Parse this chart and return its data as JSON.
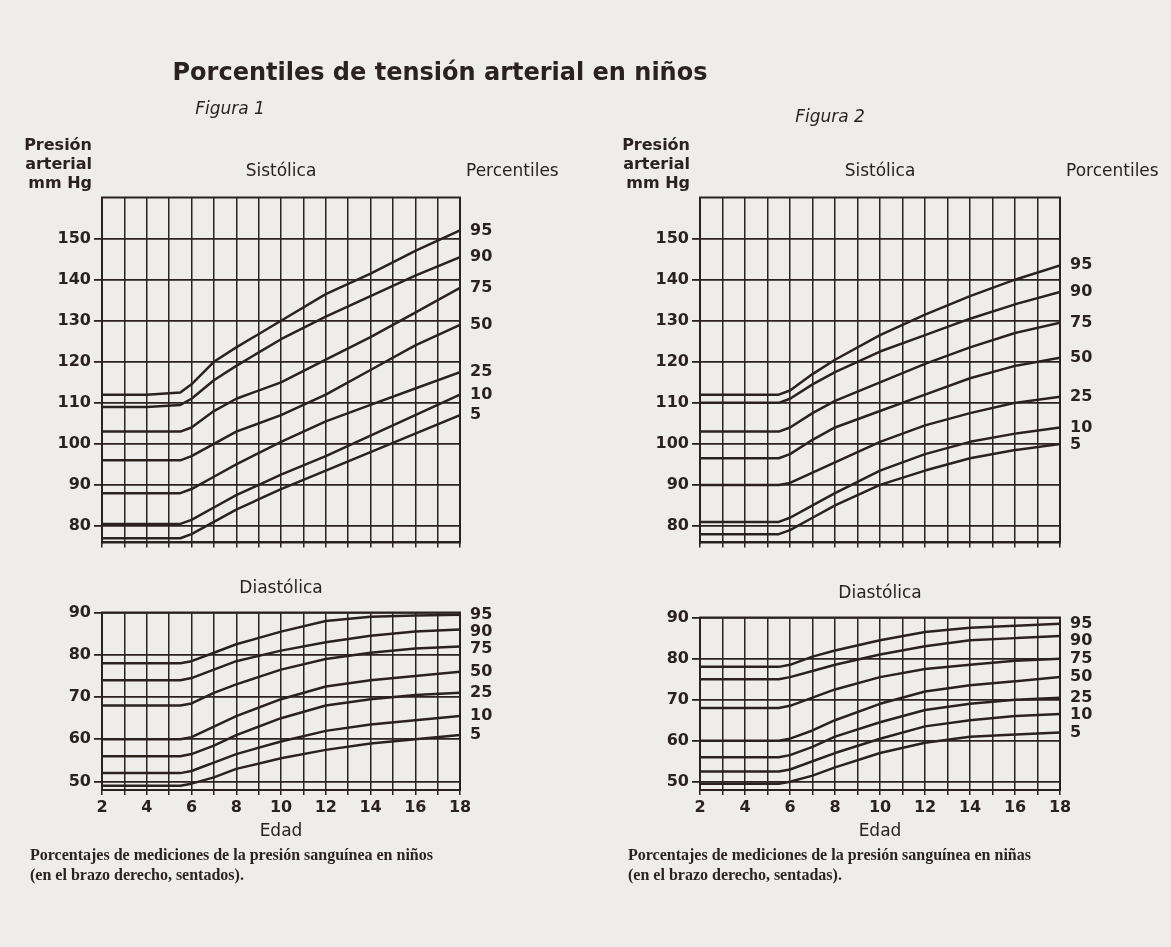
{
  "chart_data": [
    {
      "type": "line",
      "title": "Sistólica",
      "ylabel": "Presión arterial mm Hg",
      "legend_title": "Percentiles",
      "annotations": [
        "Porcentiles de tensión arterial en niños",
        "Figura 1"
      ],
      "x": [
        2,
        4,
        5.5,
        6,
        7,
        8,
        10,
        12,
        14,
        16,
        18
      ],
      "xlim": [
        2,
        18
      ],
      "xticks": [
        2,
        {
          "value": 3,
          "label": null
        },
        4,
        {
          "value": 5,
          "label": null
        },
        6,
        {
          "value": 7,
          "label": null
        },
        8,
        {
          "value": 9,
          "label": null
        },
        10,
        {
          "value": 11,
          "label": null
        },
        12,
        {
          "value": 13,
          "label": null
        },
        14,
        {
          "value": 15,
          "label": null
        },
        16,
        {
          "value": 17,
          "label": null
        },
        18
      ],
      "ylim": [
        76,
        160
      ],
      "yticks": [
        80,
        90,
        100,
        110,
        120,
        130,
        140,
        150
      ],
      "grid": true,
      "tick_labels": "y",
      "marker": "none",
      "line_style": "solid",
      "series": [
        {
          "name": "95",
          "color": "#2b2220",
          "values": [
            112,
            112,
            112.5,
            114.5,
            120,
            123.5,
            130,
            136.5,
            141.5,
            147,
            152
          ]
        },
        {
          "name": "90",
          "color": "#2b2220",
          "values": [
            109,
            109,
            109.5,
            111,
            115.5,
            119,
            125.5,
            131,
            136,
            141,
            145.5
          ]
        },
        {
          "name": "75",
          "color": "#2b2220",
          "values": [
            103,
            103,
            103,
            104,
            108,
            111,
            115,
            120.5,
            126,
            132,
            138
          ]
        },
        {
          "name": "50",
          "color": "#2b2220",
          "values": [
            96,
            96,
            96,
            97,
            100,
            103,
            107,
            112,
            118,
            124,
            129
          ]
        },
        {
          "name": "25",
          "color": "#2b2220",
          "values": [
            88,
            88,
            88,
            89,
            92,
            95,
            100.5,
            105.5,
            109.5,
            113.5,
            117.5
          ]
        },
        {
          "name": "10",
          "color": "#2b2220",
          "values": [
            80.5,
            80.5,
            80.5,
            81.5,
            84.5,
            87.5,
            92.5,
            97,
            102,
            107,
            112
          ]
        },
        {
          "name": "5",
          "color": "#2b2220",
          "values": [
            77,
            77,
            77,
            78,
            81,
            84,
            89,
            93.5,
            98,
            102.5,
            107
          ]
        }
      ]
    },
    {
      "type": "line",
      "title": "Diastólica",
      "xlabel": "Edad",
      "annotations": [
        "Porcentajes de mediciones de la presión sanguínea en niños (en el brazo derecho, sentados)."
      ],
      "x": [
        2,
        4,
        5.5,
        6,
        7,
        8,
        10,
        12,
        14,
        16,
        18
      ],
      "xlim": [
        2,
        18
      ],
      "xticks": [
        2,
        {
          "value": 3,
          "label": null
        },
        4,
        {
          "value": 5,
          "label": null
        },
        6,
        {
          "value": 7,
          "label": null
        },
        8,
        {
          "value": 9,
          "label": null
        },
        10,
        {
          "value": 11,
          "label": null
        },
        12,
        {
          "value": 13,
          "label": null
        },
        14,
        {
          "value": 15,
          "label": null
        },
        16,
        {
          "value": 17,
          "label": null
        },
        18
      ],
      "ylim": [
        48,
        90
      ],
      "yticks": [
        50,
        60,
        70,
        80,
        90
      ],
      "grid": true,
      "marker": "none",
      "line_style": "solid",
      "series": [
        {
          "name": "95",
          "color": "#2b2220",
          "values": [
            78,
            78,
            78,
            78.5,
            80.5,
            82.5,
            85.5,
            88,
            89,
            89.3,
            89.5
          ]
        },
        {
          "name": "90",
          "color": "#2b2220",
          "values": [
            74,
            74,
            74,
            74.5,
            76.5,
            78.5,
            81,
            83,
            84.5,
            85.5,
            86
          ]
        },
        {
          "name": "75",
          "color": "#2b2220",
          "values": [
            68,
            68,
            68,
            68.5,
            71,
            73,
            76.5,
            79,
            80.5,
            81.5,
            82
          ]
        },
        {
          "name": "50",
          "color": "#2b2220",
          "values": [
            60,
            60,
            60,
            60.5,
            63,
            65.5,
            69.5,
            72.5,
            74,
            75,
            76
          ]
        },
        {
          "name": "25",
          "color": "#2b2220",
          "values": [
            56,
            56,
            56,
            56.5,
            58.5,
            61,
            65,
            68,
            69.5,
            70.5,
            71
          ]
        },
        {
          "name": "10",
          "color": "#2b2220",
          "values": [
            52,
            52,
            52,
            52.5,
            54.5,
            56.5,
            59.5,
            62,
            63.5,
            64.5,
            65.5
          ]
        },
        {
          "name": "5",
          "color": "#2b2220",
          "values": [
            49,
            49,
            49,
            49.5,
            51,
            53,
            55.5,
            57.5,
            59,
            60,
            61
          ]
        }
      ]
    },
    {
      "type": "line",
      "title": "Sistólica",
      "ylabel": "Presión arterial mm Hg",
      "legend_title": "Porcentiles",
      "annotations": [
        "Figura 2"
      ],
      "x": [
        2,
        4,
        5.5,
        6,
        7,
        8,
        10,
        12,
        14,
        16,
        18
      ],
      "xlim": [
        2,
        18
      ],
      "xticks": [
        2,
        {
          "value": 3,
          "label": null
        },
        4,
        {
          "value": 5,
          "label": null
        },
        6,
        {
          "value": 7,
          "label": null
        },
        8,
        {
          "value": 9,
          "label": null
        },
        10,
        {
          "value": 11,
          "label": null
        },
        12,
        {
          "value": 13,
          "label": null
        },
        14,
        {
          "value": 15,
          "label": null
        },
        16,
        {
          "value": 17,
          "label": null
        },
        18
      ],
      "ylim": [
        76,
        160
      ],
      "yticks": [
        80,
        90,
        100,
        110,
        120,
        130,
        140,
        150
      ],
      "grid": true,
      "tick_labels": "y",
      "marker": "none",
      "line_style": "solid",
      "series": [
        {
          "name": "95",
          "color": "#2b2220",
          "values": [
            112,
            112,
            112,
            113,
            117,
            120.5,
            126.5,
            131.5,
            136,
            140,
            143.5
          ]
        },
        {
          "name": "90",
          "color": "#2b2220",
          "values": [
            110,
            110,
            110,
            111,
            114.5,
            117.5,
            122.5,
            126.5,
            130.5,
            134,
            137
          ]
        },
        {
          "name": "75",
          "color": "#2b2220",
          "values": [
            103,
            103,
            103,
            104,
            107.5,
            110.5,
            115,
            119.5,
            123.5,
            127,
            129.5
          ]
        },
        {
          "name": "50",
          "color": "#2b2220",
          "values": [
            96.5,
            96.5,
            96.5,
            97.5,
            101,
            104,
            108,
            112,
            116,
            119,
            121
          ]
        },
        {
          "name": "25",
          "color": "#2b2220",
          "values": [
            90,
            90,
            90,
            90.5,
            93,
            95.5,
            100.5,
            104.5,
            107.5,
            110,
            111.5
          ]
        },
        {
          "name": "10",
          "color": "#2b2220",
          "values": [
            81,
            81,
            81,
            82,
            85,
            88,
            93.5,
            97.5,
            100.5,
            102.5,
            104
          ]
        },
        {
          "name": "5",
          "color": "#2b2220",
          "values": [
            78,
            78,
            78,
            79,
            82,
            85,
            90,
            93.5,
            96.5,
            98.5,
            100
          ]
        }
      ]
    },
    {
      "type": "line",
      "title": "Diastólica",
      "xlabel": "Edad",
      "annotations": [
        "Porcentajes de mediciones de la presión sanguínea en niñas (en el brazo derecho, sentadas)."
      ],
      "x": [
        2,
        4,
        5.5,
        6,
        7,
        8,
        10,
        12,
        14,
        16,
        18
      ],
      "xlim": [
        2,
        18
      ],
      "xticks": [
        2,
        {
          "value": 3,
          "label": null
        },
        4,
        {
          "value": 5,
          "label": null
        },
        6,
        {
          "value": 7,
          "label": null
        },
        8,
        {
          "value": 9,
          "label": null
        },
        10,
        {
          "value": 11,
          "label": null
        },
        12,
        {
          "value": 13,
          "label": null
        },
        14,
        {
          "value": 15,
          "label": null
        },
        16,
        {
          "value": 17,
          "label": null
        },
        18
      ],
      "ylim": [
        48,
        90
      ],
      "yticks": [
        50,
        60,
        70,
        80,
        90
      ],
      "grid": true,
      "marker": "none",
      "line_style": "solid",
      "series": [
        {
          "name": "95",
          "color": "#2b2220",
          "values": [
            78,
            78,
            78,
            78.5,
            80.5,
            82,
            84.5,
            86.5,
            87.5,
            88,
            88.5
          ]
        },
        {
          "name": "90",
          "color": "#2b2220",
          "values": [
            75,
            75,
            75,
            75.5,
            77,
            78.5,
            81,
            83,
            84.5,
            85,
            85.5
          ]
        },
        {
          "name": "75",
          "color": "#2b2220",
          "values": [
            68,
            68,
            68,
            68.5,
            70.5,
            72.5,
            75.5,
            77.5,
            78.5,
            79.5,
            80
          ]
        },
        {
          "name": "50",
          "color": "#2b2220",
          "values": [
            60,
            60,
            60,
            60.5,
            62.5,
            65,
            69,
            72,
            73.5,
            74.5,
            75.5
          ]
        },
        {
          "name": "25",
          "color": "#2b2220",
          "values": [
            56,
            56,
            56,
            56.5,
            58.5,
            61,
            64.5,
            67.5,
            69,
            70,
            70.5
          ]
        },
        {
          "name": "10",
          "color": "#2b2220",
          "values": [
            52.5,
            52.5,
            52.5,
            53,
            55,
            57,
            60.5,
            63.5,
            65,
            66,
            66.5
          ]
        },
        {
          "name": "5",
          "color": "#2b2220",
          "values": [
            49.5,
            49.5,
            49.5,
            50,
            51.5,
            53.5,
            57,
            59.5,
            61,
            61.5,
            62
          ]
        }
      ]
    }
  ]
}
